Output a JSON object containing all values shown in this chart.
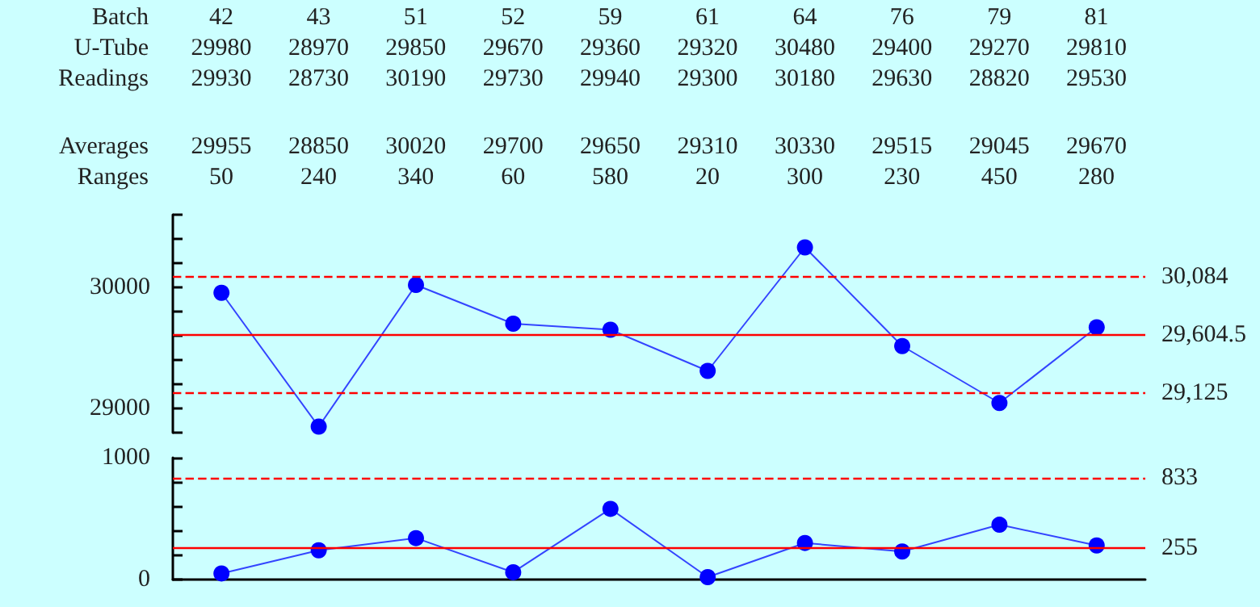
{
  "chart_data": [
    {
      "type": "other",
      "xlabel": "Batch",
      "categories": [
        "42",
        "43",
        "51",
        "52",
        "59",
        "61",
        "64",
        "76",
        "79",
        "81"
      ],
      "data_labels": true,
      "series": [
        {
          "name": "U-Tube",
          "values": [
            29980,
            28970,
            29850,
            29670,
            29360,
            29320,
            30480,
            29400,
            29270,
            29810
          ]
        },
        {
          "name": "Readings",
          "values": [
            29930,
            28730,
            30190,
            29730,
            29940,
            29300,
            30180,
            29630,
            28820,
            29530
          ]
        },
        {
          "name": "Averages",
          "values": [
            29955,
            28850,
            30020,
            29700,
            29650,
            29310,
            30330,
            29515,
            29045,
            29670
          ]
        },
        {
          "name": "Ranges",
          "values": [
            50,
            240,
            340,
            60,
            580,
            20,
            300,
            230,
            450,
            280
          ]
        }
      ]
    },
    {
      "type": "line",
      "categories": [
        null,
        null,
        null,
        null,
        null,
        null,
        null,
        null,
        null,
        null
      ],
      "color": "#0000ff",
      "marker": "circle",
      "tick_labels": "y",
      "grid": false,
      "values": [
        29955,
        28850,
        30020,
        29700,
        29650,
        29310,
        30330,
        29515,
        29045,
        29670
      ],
      "ylim": [
        28800,
        30600
      ],
      "yticks": [
        {
          "value": 28800,
          "label": null
        },
        29000,
        {
          "value": 29200,
          "label": null
        },
        {
          "value": 29400,
          "label": null
        },
        {
          "value": 29600,
          "label": null
        },
        {
          "value": 29800,
          "label": null
        },
        30000,
        {
          "value": 30200,
          "label": null
        },
        {
          "value": 30400,
          "label": null
        },
        {
          "value": 30600,
          "label": null
        }
      ],
      "ref_lines": [
        {
          "axis": "y",
          "value": 30084,
          "label": "30,084",
          "color": "#ff0000",
          "line_style": "dashed"
        },
        {
          "axis": "y",
          "value": 29604.5,
          "label": "29,604.5",
          "color": "#ff0000",
          "line_style": "solid"
        },
        {
          "axis": "y",
          "value": 29125,
          "label": "29,125",
          "color": "#ff0000",
          "line_style": "dashed"
        }
      ]
    },
    {
      "type": "line",
      "categories": [
        null,
        null,
        null,
        null,
        null,
        null,
        null,
        null,
        null,
        null
      ],
      "color": "#0000ff",
      "marker": "circle",
      "tick_labels": "y",
      "grid": false,
      "values": [
        50,
        240,
        340,
        60,
        580,
        20,
        300,
        230,
        450,
        280
      ],
      "ylim": [
        0,
        1000
      ],
      "yticks": [
        0,
        {
          "value": 200,
          "label": null
        },
        {
          "value": 400,
          "label": null
        },
        {
          "value": 600,
          "label": null
        },
        {
          "value": 800,
          "label": null
        },
        1000
      ],
      "ref_lines": [
        {
          "axis": "y",
          "value": 833,
          "label": "833",
          "color": "#ff0000",
          "line_style": "dashed"
        },
        {
          "axis": "y",
          "value": 255,
          "label": "255",
          "color": "#ff0000",
          "line_style": "solid"
        }
      ]
    }
  ]
}
